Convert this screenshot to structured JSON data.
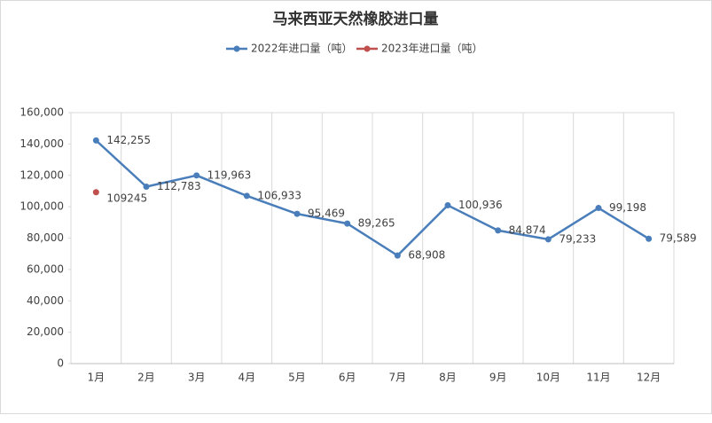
{
  "chart_data": {
    "type": "line",
    "title": "马来西亚天然橡胶进口量",
    "categories": [
      "1月",
      "2月",
      "3月",
      "4月",
      "5月",
      "6月",
      "7月",
      "8月",
      "9月",
      "10月",
      "11月",
      "12月"
    ],
    "series": [
      {
        "name": "2022年进口量（吨）",
        "color": "#4a7ebb",
        "values": [
          142255,
          112783,
          119963,
          106933,
          95469,
          89265,
          68908,
          100936,
          84874,
          79233,
          99198,
          79589
        ],
        "value_labels": [
          "142,255",
          "112,783",
          "119,963",
          "106,933",
          "95,469",
          "89,265",
          "68,908",
          "100,936",
          "84,874",
          "79,233",
          "99,198",
          "79,589"
        ]
      },
      {
        "name": "2023年进口量（吨）",
        "color": "#c0504d",
        "values": [
          109245,
          null,
          null,
          null,
          null,
          null,
          null,
          null,
          null,
          null,
          null,
          null
        ]
      }
    ],
    "ylim": [
      0,
      160000
    ],
    "yticks": [
      0,
      {
        "value": 20000,
        "label": "20,000"
      },
      {
        "value": 40000,
        "label": "40,000"
      },
      {
        "value": 60000,
        "label": "60,000"
      },
      {
        "value": 80000,
        "label": "80,000"
      },
      {
        "value": 100000,
        "label": "100,000"
      },
      {
        "value": 120000,
        "label": "120,000"
      },
      {
        "value": 140000,
        "label": "140,000"
      },
      {
        "value": 160000,
        "label": "160,000"
      }
    ],
    "xgrid": true,
    "legend": "top"
  }
}
